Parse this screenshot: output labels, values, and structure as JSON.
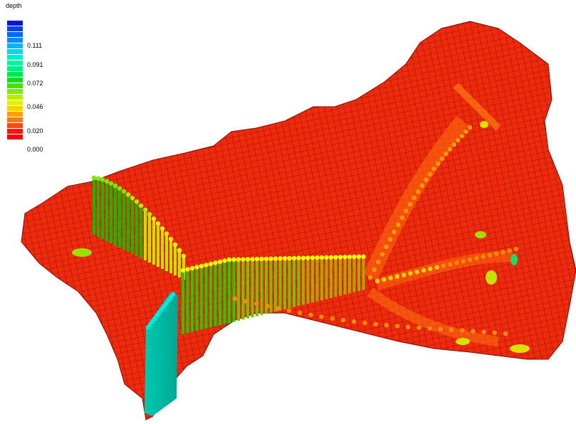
{
  "legend": {
    "title": "depth",
    "colors": [
      "#0016d8",
      "#0041f0",
      "#0067f8",
      "#008cff",
      "#00b4ff",
      "#00d8f0",
      "#00ecd0",
      "#00f4a8",
      "#00f080",
      "#00e650",
      "#10dc20",
      "#48e000",
      "#80ec00",
      "#b4f000",
      "#e8f000",
      "#ffd000",
      "#ffa000",
      "#ff7800",
      "#ff4800",
      "#ff1400",
      "#ff0000"
    ],
    "ticks": [
      "0.111",
      "0.091",
      "0.072",
      "0.046",
      "0.020",
      "0.000"
    ]
  },
  "colors": {
    "terrain": "#f22a0c",
    "terrain_high": "#ff5a10",
    "mesh_line": "#3a0a04",
    "channel_upper": "#d8ff00",
    "channel_lower": "#ff7000",
    "column_green": "#18b800",
    "column_yellow": "#c8e000",
    "column_cyan": "#00c0a8"
  }
}
